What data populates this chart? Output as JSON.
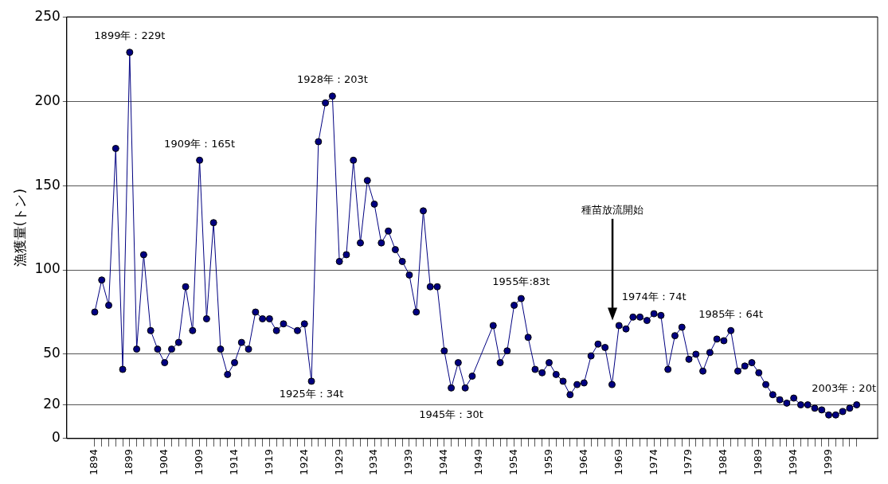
{
  "chart_data": {
    "type": "line",
    "ylabel": "漁獲量(トン)",
    "x": [
      1894,
      1895,
      1896,
      1897,
      1898,
      1899,
      1900,
      1901,
      1902,
      1903,
      1904,
      1905,
      1906,
      1907,
      1908,
      1909,
      1910,
      1911,
      1912,
      1913,
      1914,
      1915,
      1916,
      1917,
      1918,
      1919,
      1920,
      1921,
      1923,
      1924,
      1925,
      1926,
      1927,
      1928,
      1929,
      1930,
      1931,
      1932,
      1933,
      1934,
      1935,
      1936,
      1937,
      1938,
      1939,
      1940,
      1941,
      1942,
      1943,
      1944,
      1945,
      1946,
      1947,
      1948,
      1951,
      1952,
      1953,
      1954,
      1955,
      1956,
      1957,
      1958,
      1959,
      1960,
      1961,
      1962,
      1963,
      1964,
      1965,
      1966,
      1967,
      1968,
      1969,
      1970,
      1971,
      1972,
      1973,
      1974,
      1975,
      1976,
      1977,
      1978,
      1979,
      1980,
      1981,
      1982,
      1983,
      1984,
      1985,
      1986,
      1987,
      1988,
      1989,
      1990,
      1991,
      1992,
      1993,
      1994,
      1995,
      1996,
      1997,
      1998,
      1999,
      2000,
      2001,
      2002,
      2003
    ],
    "series": [
      {
        "color": "#000080",
        "values": [
          75,
          94,
          79,
          172,
          41,
          229,
          53,
          109,
          64,
          53,
          45,
          53,
          57,
          90,
          64,
          165,
          71,
          128,
          53,
          38,
          45,
          57,
          53,
          75,
          71,
          71,
          64,
          68,
          64,
          68,
          34,
          176,
          199,
          203,
          105,
          109,
          165,
          116,
          153,
          139,
          116,
          123,
          112,
          105,
          97,
          75,
          135,
          90,
          90,
          52,
          30,
          45,
          30,
          37,
          67,
          45,
          52,
          79,
          83,
          60,
          41,
          39,
          45,
          38,
          34,
          26,
          32,
          33,
          49,
          56,
          54,
          32,
          67,
          65,
          72,
          72,
          70,
          74,
          73,
          41,
          61,
          66,
          47,
          50,
          40,
          51,
          59,
          58,
          64,
          40,
          43,
          45,
          39,
          32,
          26,
          23,
          21,
          24,
          20,
          20,
          18,
          17,
          14,
          14,
          16,
          18,
          20
        ]
      }
    ],
    "xlim": [
      1890,
      2006
    ],
    "xticks": [
      1894,
      {
        "value": 1895,
        "label": null
      },
      {
        "value": 1896,
        "label": null
      },
      {
        "value": 1897,
        "label": null
      },
      {
        "value": 1898,
        "label": null
      },
      1899,
      {
        "value": 1900,
        "label": null
      },
      {
        "value": 1901,
        "label": null
      },
      {
        "value": 1902,
        "label": null
      },
      {
        "value": 1903,
        "label": null
      },
      1904,
      {
        "value": 1905,
        "label": null
      },
      {
        "value": 1906,
        "label": null
      },
      {
        "value": 1907,
        "label": null
      },
      {
        "value": 1908,
        "label": null
      },
      1909,
      {
        "value": 1910,
        "label": null
      },
      {
        "value": 1911,
        "label": null
      },
      {
        "value": 1912,
        "label": null
      },
      {
        "value": 1913,
        "label": null
      },
      1914,
      {
        "value": 1915,
        "label": null
      },
      {
        "value": 1916,
        "label": null
      },
      {
        "value": 1917,
        "label": null
      },
      {
        "value": 1918,
        "label": null
      },
      1919,
      {
        "value": 1920,
        "label": null
      },
      {
        "value": 1921,
        "label": null
      },
      {
        "value": 1922,
        "label": null
      },
      {
        "value": 1923,
        "label": null
      },
      1924,
      {
        "value": 1925,
        "label": null
      },
      {
        "value": 1926,
        "label": null
      },
      {
        "value": 1927,
        "label": null
      },
      {
        "value": 1928,
        "label": null
      },
      1929,
      {
        "value": 1930,
        "label": null
      },
      {
        "value": 1931,
        "label": null
      },
      {
        "value": 1932,
        "label": null
      },
      {
        "value": 1933,
        "label": null
      },
      1934,
      {
        "value": 1935,
        "label": null
      },
      {
        "value": 1936,
        "label": null
      },
      {
        "value": 1937,
        "label": null
      },
      {
        "value": 1938,
        "label": null
      },
      1939,
      {
        "value": 1940,
        "label": null
      },
      {
        "value": 1941,
        "label": null
      },
      {
        "value": 1942,
        "label": null
      },
      {
        "value": 1943,
        "label": null
      },
      1944,
      {
        "value": 1945,
        "label": null
      },
      {
        "value": 1946,
        "label": null
      },
      {
        "value": 1947,
        "label": null
      },
      {
        "value": 1948,
        "label": null
      },
      1949,
      {
        "value": 1950,
        "label": null
      },
      {
        "value": 1951,
        "label": null
      },
      {
        "value": 1952,
        "label": null
      },
      {
        "value": 1953,
        "label": null
      },
      1954,
      {
        "value": 1955,
        "label": null
      },
      {
        "value": 1956,
        "label": null
      },
      {
        "value": 1957,
        "label": null
      },
      {
        "value": 1958,
        "label": null
      },
      1959,
      {
        "value": 1960,
        "label": null
      },
      {
        "value": 1961,
        "label": null
      },
      {
        "value": 1962,
        "label": null
      },
      {
        "value": 1963,
        "label": null
      },
      1964,
      {
        "value": 1965,
        "label": null
      },
      {
        "value": 1966,
        "label": null
      },
      {
        "value": 1967,
        "label": null
      },
      {
        "value": 1968,
        "label": null
      },
      1969,
      {
        "value": 1970,
        "label": null
      },
      {
        "value": 1971,
        "label": null
      },
      {
        "value": 1972,
        "label": null
      },
      {
        "value": 1973,
        "label": null
      },
      1974,
      {
        "value": 1975,
        "label": null
      },
      {
        "value": 1976,
        "label": null
      },
      {
        "value": 1977,
        "label": null
      },
      {
        "value": 1978,
        "label": null
      },
      1979,
      {
        "value": 1980,
        "label": null
      },
      {
        "value": 1981,
        "label": null
      },
      {
        "value": 1982,
        "label": null
      },
      {
        "value": 1983,
        "label": null
      },
      1984,
      {
        "value": 1985,
        "label": null
      },
      {
        "value": 1986,
        "label": null
      },
      {
        "value": 1987,
        "label": null
      },
      {
        "value": 1988,
        "label": null
      },
      1989,
      {
        "value": 1990,
        "label": null
      },
      {
        "value": 1991,
        "label": null
      },
      {
        "value": 1992,
        "label": null
      },
      {
        "value": 1993,
        "label": null
      },
      1994,
      {
        "value": 1995,
        "label": null
      },
      {
        "value": 1996,
        "label": null
      },
      {
        "value": 1997,
        "label": null
      },
      {
        "value": 1998,
        "label": null
      },
      1999,
      {
        "value": 2000,
        "label": null
      },
      {
        "value": 2001,
        "label": null
      },
      {
        "value": 2002,
        "label": null
      },
      {
        "value": 2003,
        "label": null
      }
    ],
    "ylim": [
      0,
      250
    ],
    "yticks": [
      0,
      20,
      50,
      100,
      150,
      200,
      250
    ],
    "grid": "y",
    "marker": "circle",
    "line_style": "solid",
    "annotations": [
      {
        "text": "1899年：229t",
        "x": 1899,
        "y": 229
      },
      {
        "text": "1909年：165t",
        "x": 1909,
        "y": 165
      },
      {
        "text": "1928年：203t",
        "x": 1928,
        "y": 203
      },
      {
        "text": "1925年：34t",
        "x": 1925,
        "y": 34
      },
      {
        "text": "1945年：30t",
        "x": 1945,
        "y": 30
      },
      {
        "text": "1955年:83t",
        "x": 1955,
        "y": 83
      },
      "種苗放流開始",
      {
        "text": "1974年：74t",
        "x": 1974,
        "y": 74
      },
      {
        "text": "1985年：64t",
        "x": 1985,
        "y": 64
      },
      {
        "text": "2003年：20t",
        "x": 2003,
        "y": 20
      }
    ]
  }
}
